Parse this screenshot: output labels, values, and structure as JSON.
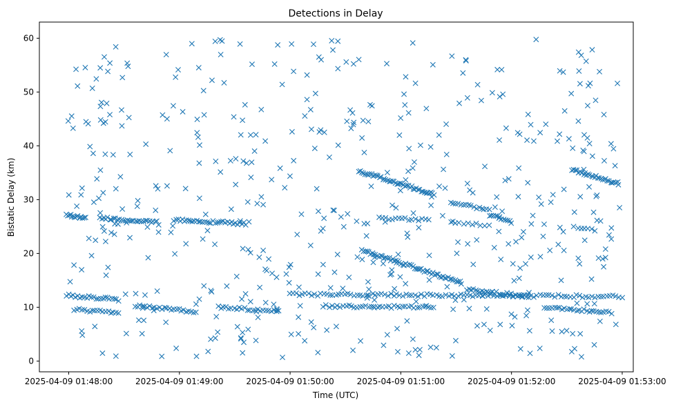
{
  "chart_data": {
    "type": "scatter",
    "title": "Detections in Delay",
    "xlabel": "Time (UTC)",
    "ylabel": "Bistatic Delay (km)",
    "marker": "x",
    "color": "#1f77b4",
    "x_unit": "minutes since 2025-04-09 01:48:00",
    "xlim": [
      -0.265,
      5.1
    ],
    "ylim": [
      -2.0,
      63.0
    ],
    "xticks": [
      {
        "value": 0,
        "label": "2025-04-09 01:48:00"
      },
      {
        "value": 1,
        "label": "2025-04-09 01:49:00"
      },
      {
        "value": 2,
        "label": "2025-04-09 01:50:00"
      },
      {
        "value": 3,
        "label": "2025-04-09 01:51:00"
      },
      {
        "value": 4,
        "label": "2025-04-09 01:52:00"
      },
      {
        "value": 5,
        "label": "2025-04-09 01:53:00"
      }
    ],
    "yticks": [
      0,
      10,
      20,
      30,
      40,
      50,
      60
    ],
    "tracks": [
      {
        "name": "track-27-to-26",
        "x_start": -0.02,
        "x_end": 0.15,
        "y_start": 27.2,
        "y_end": 26.6,
        "n": 14
      },
      {
        "name": "track-26-2",
        "x_start": 0.28,
        "x_end": 0.8,
        "y_start": 26.6,
        "y_end": 25.8,
        "n": 30
      },
      {
        "name": "track-26-3",
        "x_start": 0.95,
        "x_end": 1.6,
        "y_start": 26.3,
        "y_end": 25.5,
        "n": 36
      },
      {
        "name": "track-12-left",
        "x_start": -0.02,
        "x_end": 0.45,
        "y_start": 12.2,
        "y_end": 11.4,
        "n": 24
      },
      {
        "name": "track-10-left",
        "x_start": 0.05,
        "x_end": 0.45,
        "y_start": 9.6,
        "y_end": 9.0,
        "n": 18
      },
      {
        "name": "track-10-mid",
        "x_start": 0.6,
        "x_end": 1.15,
        "y_start": 10.3,
        "y_end": 9.2,
        "n": 26
      },
      {
        "name": "track-10-mid2",
        "x_start": 1.35,
        "x_end": 1.9,
        "y_start": 10.0,
        "y_end": 9.2,
        "n": 24
      },
      {
        "name": "track-12-long",
        "x_start": 2.0,
        "x_end": 5.0,
        "y_start": 12.4,
        "y_end": 12.0,
        "n": 110
      },
      {
        "name": "track-10-mid3",
        "x_start": 2.3,
        "x_end": 3.3,
        "y_start": 10.2,
        "y_end": 10.0,
        "n": 40
      },
      {
        "name": "track-35-to-31",
        "x_start": 2.62,
        "x_end": 3.3,
        "y_start": 35.3,
        "y_end": 31.0,
        "n": 48
      },
      {
        "name": "track-20-to-14",
        "x_start": 2.65,
        "x_end": 3.55,
        "y_start": 20.6,
        "y_end": 14.5,
        "n": 60
      },
      {
        "name": "track-26-4",
        "x_start": 2.8,
        "x_end": 3.25,
        "y_start": 26.6,
        "y_end": 26.3,
        "n": 16
      },
      {
        "name": "track-29-to-28",
        "x_start": 3.45,
        "x_end": 3.8,
        "y_start": 29.5,
        "y_end": 28.0,
        "n": 16
      },
      {
        "name": "track-25-3",
        "x_start": 3.45,
        "x_end": 3.8,
        "y_start": 25.6,
        "y_end": 25.3,
        "n": 10
      },
      {
        "name": "track-27-to-25",
        "x_start": 3.8,
        "x_end": 4.0,
        "y_start": 27.2,
        "y_end": 25.8,
        "n": 12
      },
      {
        "name": "track-13-to-12",
        "x_start": 3.6,
        "x_end": 4.15,
        "y_start": 13.3,
        "y_end": 12.0,
        "n": 30
      },
      {
        "name": "track-35-to-33",
        "x_start": 4.55,
        "x_end": 4.97,
        "y_start": 35.5,
        "y_end": 33.0,
        "n": 30
      },
      {
        "name": "track-10-right",
        "x_start": 4.3,
        "x_end": 4.9,
        "y_start": 10.0,
        "y_end": 9.0,
        "n": 28
      },
      {
        "name": "track-24-right",
        "x_start": 4.6,
        "x_end": 4.75,
        "y_start": 24.8,
        "y_end": 24.3,
        "n": 6
      }
    ],
    "clutter": {
      "x_range": [
        -0.02,
        4.98
      ],
      "y_range": [
        0.5,
        60.0
      ],
      "n": 520,
      "note": "uniformly scattered isolated false detections"
    }
  }
}
